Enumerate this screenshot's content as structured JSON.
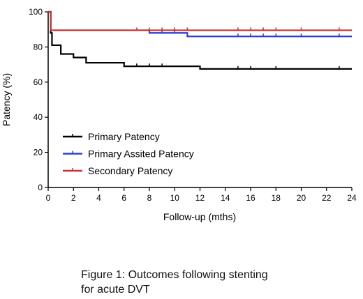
{
  "chart_data": {
    "type": "line",
    "xlabel": "Follow-up (mths)",
    "ylabel": "Patency (%)",
    "xlim": [
      0,
      24
    ],
    "ylim": [
      0,
      100
    ],
    "x_ticks": [
      "0",
      "2",
      "4",
      "6",
      "8",
      "10",
      "12",
      "14",
      "16",
      "18",
      "20",
      "22",
      "24"
    ],
    "y_ticks": [
      "0",
      "20",
      "40",
      "60",
      "80",
      "100"
    ],
    "step": true,
    "grid": false,
    "legend_position": "left-lower",
    "series": [
      {
        "name": "Primary Patency",
        "color": "#000000",
        "steps": [
          [
            0,
            100
          ],
          [
            0.2,
            88
          ],
          [
            0.3,
            81
          ],
          [
            1,
            76
          ],
          [
            2,
            74
          ],
          [
            3,
            71
          ],
          [
            6,
            69
          ],
          [
            12,
            67.5
          ],
          [
            24,
            67.5
          ]
        ],
        "censor_marks": [
          7,
          8,
          9,
          15,
          16,
          18,
          23
        ]
      },
      {
        "name": "Primary Assited Patency",
        "color": "#2a3fd1",
        "steps": [
          [
            0,
            100
          ],
          [
            0.2,
            89.5
          ],
          [
            8,
            88
          ],
          [
            11,
            86
          ],
          [
            24,
            86
          ]
        ],
        "censor_marks": [
          8,
          9,
          10,
          15,
          16,
          17,
          18,
          20,
          23
        ]
      },
      {
        "name": "Secondary Patency",
        "color": "#c8322b",
        "steps": [
          [
            0,
            100
          ],
          [
            0.2,
            89.5
          ],
          [
            24,
            89.5
          ]
        ],
        "censor_marks": [
          7,
          8,
          9,
          10,
          11,
          15,
          16,
          17,
          18,
          20,
          23
        ]
      }
    ]
  },
  "caption": {
    "line1": "Figure 1: Outcomes following stenting",
    "line2": "for acute DVT"
  }
}
